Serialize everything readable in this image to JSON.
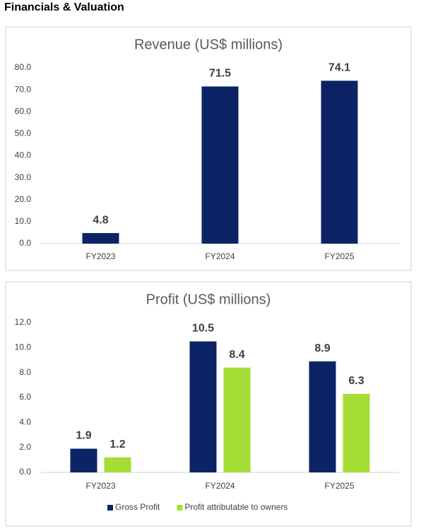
{
  "header": {
    "title": "Financials & Valuation"
  },
  "chart_data": [
    {
      "type": "bar",
      "title": "Revenue (US$ millions)",
      "categories": [
        "FY2023",
        "FY2024",
        "FY2025"
      ],
      "series": [
        {
          "name": "Revenue",
          "color": "#0c2366",
          "values": [
            4.8,
            71.5,
            74.1
          ]
        }
      ],
      "ylim": [
        0,
        80
      ],
      "yticks": [
        {
          "value": 0,
          "label": "0.0"
        },
        {
          "value": 10,
          "label": "10.0"
        },
        {
          "value": 20,
          "label": "20.0"
        },
        {
          "value": 30,
          "label": "30.0"
        },
        {
          "value": 40,
          "label": "40.0"
        },
        {
          "value": 50,
          "label": "50.0"
        },
        {
          "value": 60,
          "label": "60.0"
        },
        {
          "value": 70,
          "label": "70.0"
        },
        {
          "value": 80,
          "label": "80.0"
        }
      ],
      "legend": false
    },
    {
      "type": "bar",
      "title": "Profit (US$ millions)",
      "categories": [
        "FY2023",
        "FY2024",
        "FY2025"
      ],
      "series": [
        {
          "name": "Gross Profit",
          "color": "#0c2366",
          "values": [
            1.9,
            10.5,
            8.9
          ]
        },
        {
          "name": "Profit attributable to owners",
          "color": "#a4dd35",
          "values": [
            1.2,
            8.4,
            6.3
          ]
        }
      ],
      "ylim": [
        0,
        12
      ],
      "yticks": [
        {
          "value": 0,
          "label": "0.0"
        },
        {
          "value": 2,
          "label": "2.0"
        },
        {
          "value": 4,
          "label": "4.0"
        },
        {
          "value": 6,
          "label": "6.0"
        },
        {
          "value": 8,
          "label": "8.0"
        },
        {
          "value": 10,
          "label": "10.0"
        },
        {
          "value": 12,
          "label": "12.0"
        }
      ],
      "legend": true
    }
  ]
}
